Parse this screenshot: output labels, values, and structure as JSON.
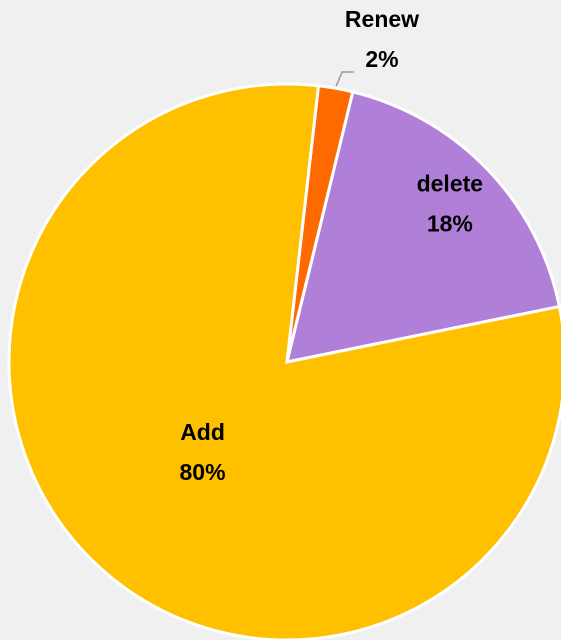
{
  "chart_data": {
    "type": "pie",
    "categories": [
      "Renew",
      "delete",
      "Add"
    ],
    "values": [
      2,
      18,
      80
    ],
    "value_labels": [
      "2%",
      "18%",
      "80%"
    ],
    "colors": [
      "#FF6A00",
      "#B07FD8",
      "#FFC000"
    ]
  }
}
